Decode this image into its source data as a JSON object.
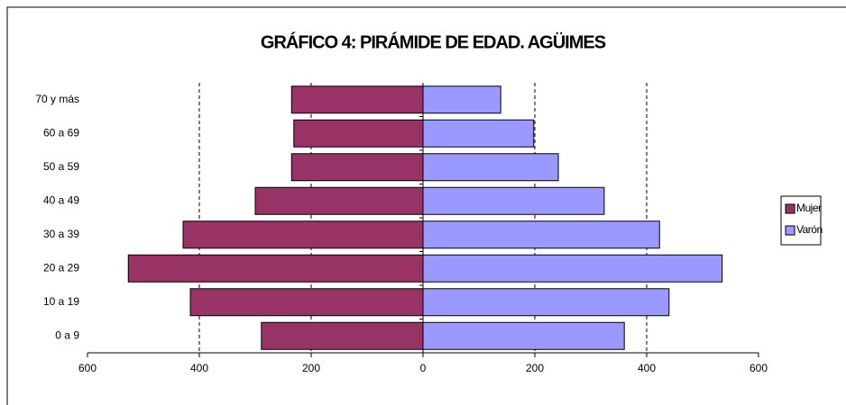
{
  "chart_data": {
    "type": "pyramid",
    "title": "GRÁFICO 4: PIRÁMIDE DE EDAD. AGÜIMES",
    "categories": [
      "0 a 9",
      "10 a 19",
      "20 a 29",
      "30 a 39",
      "40 a 49",
      "50 a 59",
      "60 a 69",
      "70 y más"
    ],
    "series": [
      {
        "name": "Mujer",
        "color": "#993366",
        "values": [
          -289,
          -416,
          -527,
          -429,
          -300,
          -235,
          -231,
          -235
        ]
      },
      {
        "name": "Varón",
        "color": "#9999ff",
        "values": [
          360,
          440,
          535,
          423,
          324,
          242,
          198,
          139
        ]
      }
    ],
    "xlim": [
      -600,
      600
    ],
    "xticks": [
      {
        "value": -600,
        "label": "600"
      },
      {
        "value": -400,
        "label": "400"
      },
      {
        "value": -200,
        "label": "200"
      },
      0,
      200,
      400,
      600
    ],
    "grid": true,
    "legend": "right"
  }
}
